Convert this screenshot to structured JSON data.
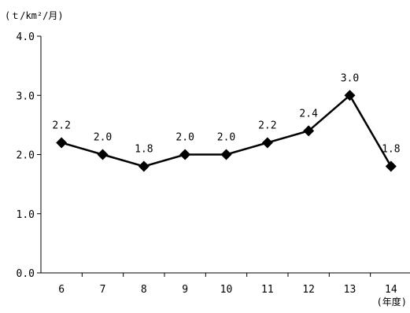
{
  "chart_data": {
    "type": "line",
    "title": "",
    "xlabel": "(年度)",
    "ylabel": "(ｔ/km²/月)",
    "categories": [
      "6",
      "7",
      "8",
      "9",
      "10",
      "11",
      "12",
      "13",
      "14"
    ],
    "series": [
      {
        "values": [
          2.2,
          2.0,
          1.8,
          2.0,
          2.0,
          2.2,
          2.4,
          3.0,
          1.8
        ],
        "data_labels": [
          "2.2",
          "2.0",
          "1.8",
          "2.0",
          "2.0",
          "2.2",
          "2.4",
          "3.0",
          "1.8"
        ],
        "marker": "diamond",
        "color": "#000000"
      }
    ],
    "ylim": [
      0,
      4.0
    ],
    "yticks": [
      0,
      1.0,
      2.0,
      3.0,
      4.0
    ],
    "ytick_labels": [
      "0.0",
      "1.0",
      "2.0",
      "3.0",
      "4.0"
    ],
    "grid": false,
    "legend": "none"
  }
}
